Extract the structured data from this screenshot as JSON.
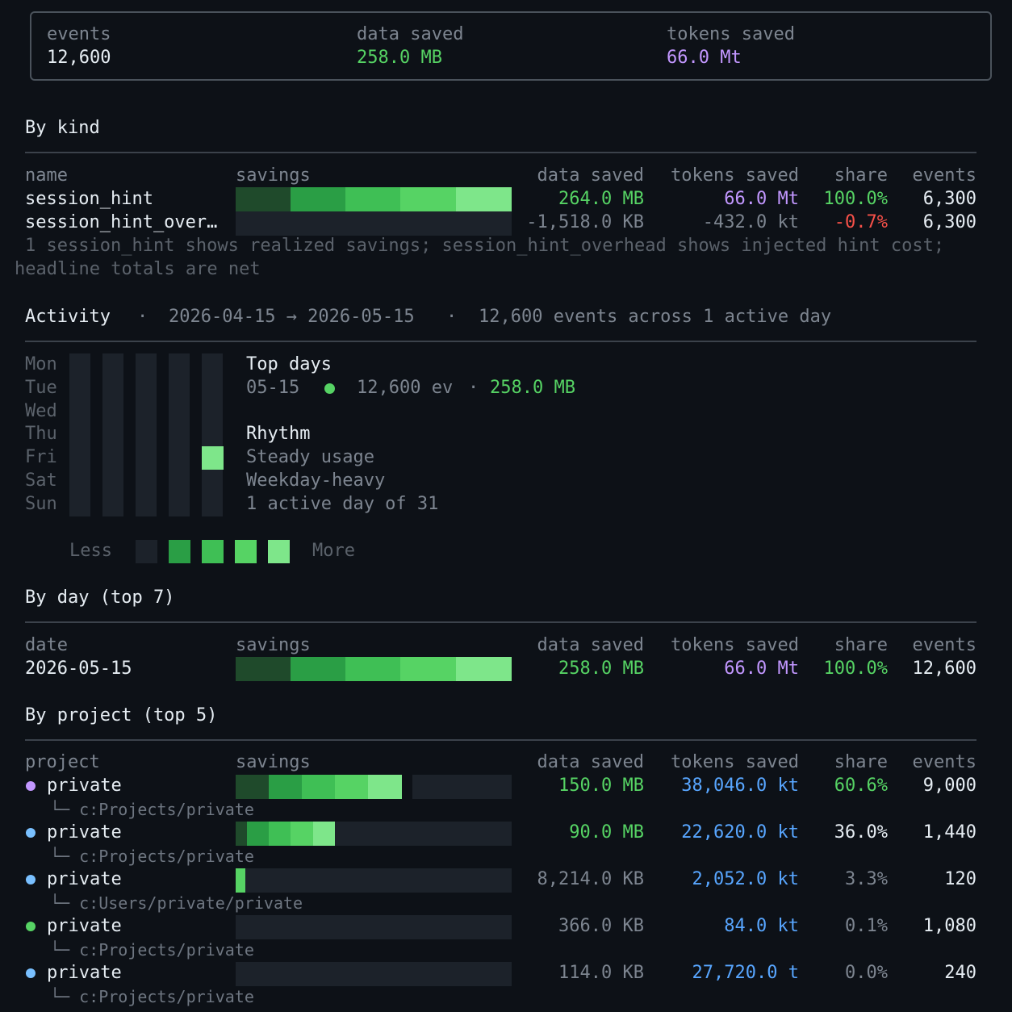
{
  "summary": {
    "events_label": "events",
    "events_value": "12,600",
    "data_label": "data saved",
    "data_value": "258.0 MB",
    "tokens_label": "tokens saved",
    "tokens_value": "66.0 Mt"
  },
  "by_kind": {
    "title": "By kind",
    "headers": {
      "name": "name",
      "savings": "savings",
      "data": "data saved",
      "tokens": "tokens saved",
      "share": "share",
      "events": "events"
    },
    "rows": [
      {
        "name": "session_hint",
        "data": "264.0 MB",
        "tokens": "66.0 Mt",
        "share": "100.0%",
        "events": "6,300",
        "fill": 1.0
      },
      {
        "name": "session_hint_over…",
        "data": "-1,518.0 KB",
        "tokens": "-432.0 kt",
        "share": "-0.7%",
        "events": "6,300",
        "fill": 0.0
      }
    ],
    "note_line1": "1  session_hint shows realized savings; session_hint_overhead shows injected hint cost;",
    "note_line2": "headline totals are net"
  },
  "activity": {
    "title": "Activity",
    "sep": "·",
    "range": "2026-04-15 → 2026-05-15",
    "summary": "12,600 events across 1 active day",
    "days": [
      "Mon",
      "Tue",
      "Wed",
      "Thu",
      "Fri",
      "Sat",
      "Sun"
    ],
    "top_days_label": "Top days",
    "top_day_date": "05-15",
    "top_day_events": "12,600 ev",
    "top_day_dot": "·",
    "top_day_data": "258.0 MB",
    "rhythm_label": "Rhythm",
    "rhythm_lines": [
      "Steady usage",
      "Weekday-heavy",
      "1 active day of 31"
    ],
    "legend_less": "Less",
    "legend_more": "More"
  },
  "by_day": {
    "title": "By day (top 7)",
    "headers": {
      "name": "date",
      "savings": "savings",
      "data": "data saved",
      "tokens": "tokens saved",
      "share": "share",
      "events": "events"
    },
    "rows": [
      {
        "name": "2026-05-15",
        "data": "258.0 MB",
        "tokens": "66.0 Mt",
        "share": "100.0%",
        "events": "12,600",
        "fill": 1.0
      }
    ]
  },
  "by_project": {
    "title": "By project (top 5)",
    "headers": {
      "name": "project",
      "savings": "savings",
      "data": "data saved",
      "tokens": "tokens saved",
      "share": "share",
      "events": "events"
    },
    "rows": [
      {
        "name": "private",
        "path": "c:Projects/private",
        "data": "150.0 MB",
        "tokens": "38,046.0 kt",
        "share": "60.6%",
        "events": "9,000",
        "dot_color": "#c297ff",
        "fill": 0.606
      },
      {
        "name": "private",
        "path": "c:Projects/private",
        "data": "90.0 MB",
        "tokens": "22,620.0 kt",
        "share": "36.0%",
        "events": "1,440",
        "dot_color": "#79c0ff",
        "fill": 0.36
      },
      {
        "name": "private",
        "path": "c:Users/private/private",
        "data": "8,214.0 KB",
        "tokens": "2,052.0 kt",
        "share": "3.3%",
        "events": "120",
        "dot_color": "#79c0ff",
        "fill": 0.033
      },
      {
        "name": "private",
        "path": "c:Projects/private",
        "data": "366.0 KB",
        "tokens": "84.0 kt",
        "share": "0.1%",
        "events": "1,080",
        "dot_color": "#56d364",
        "fill": 0.001
      },
      {
        "name": "private",
        "path": "c:Projects/private",
        "data": "114.0 KB",
        "tokens": "27,720.0 t",
        "share": "0.0%",
        "events": "240",
        "dot_color": "#79c0ff",
        "fill": 0.0
      }
    ]
  },
  "colors": {
    "green": "#56d364",
    "purple": "#c297ff",
    "blue": "#58a6ff",
    "red": "#f85149",
    "background": "#0d1117"
  }
}
